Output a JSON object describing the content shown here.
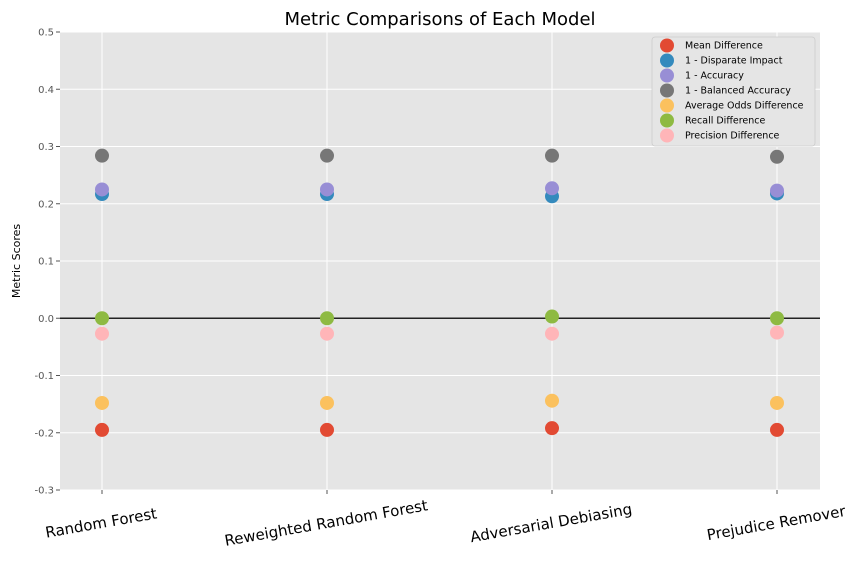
{
  "chart_data": {
    "type": "scatter",
    "title": "Metric Comparisons of Each Model",
    "xlabel": "",
    "ylabel": "Metric Scores",
    "ylim": [
      -0.3,
      0.5
    ],
    "yticks": [
      "-0.3",
      "-0.2",
      "-0.1",
      "0.0",
      "0.1",
      "0.2",
      "0.3",
      "0.4",
      "0.5"
    ],
    "categories": [
      "Random Forest",
      "Reweighted Random Forest",
      "Adversarial Debiasing",
      "Prejudice Remover"
    ],
    "grid": true,
    "reference_line_y": 0,
    "legend_position": "top-right",
    "series": [
      {
        "name": "Mean Difference",
        "color": "#E24A33",
        "values": [
          -0.195,
          -0.195,
          -0.192,
          -0.195
        ]
      },
      {
        "name": "1 - Disparate Impact",
        "color": "#348ABD",
        "values": [
          0.217,
          0.217,
          0.213,
          0.218
        ]
      },
      {
        "name": "1 - Accuracy",
        "color": "#988ED5",
        "values": [
          0.225,
          0.225,
          0.227,
          0.223
        ]
      },
      {
        "name": "1 - Balanced Accuracy",
        "color": "#777777",
        "values": [
          0.284,
          0.284,
          0.284,
          0.282
        ]
      },
      {
        "name": "Average Odds Difference",
        "color": "#FBC15E",
        "values": [
          -0.148,
          -0.148,
          -0.144,
          -0.148
        ]
      },
      {
        "name": "Recall Difference",
        "color": "#8EBA42",
        "values": [
          0.0,
          0.0,
          0.003,
          0.0
        ]
      },
      {
        "name": "Precision Difference",
        "color": "#FFB5B8",
        "values": [
          -0.027,
          -0.027,
          -0.027,
          -0.025
        ]
      }
    ]
  }
}
